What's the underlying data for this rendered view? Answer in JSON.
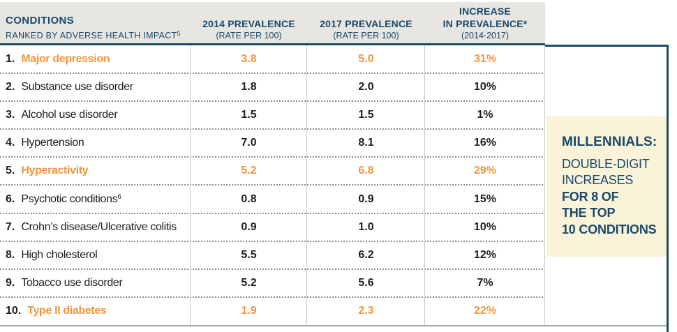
{
  "table": {
    "header": {
      "col1_title": "CONDITIONS",
      "col1_subtitle": "RANKED BY ADVERSE HEALTH IMPACT",
      "col1_subtitle_sup": "5",
      "col2_line1": "2014 PREVALENCE",
      "col2_line2": "(RATE PER 100)",
      "col3_line1": "2017 PREVALENCE",
      "col3_line2": "(RATE PER 100)",
      "col4_line1": "INCREASE",
      "col4_line2": "IN PREVALENCE*",
      "col4_line3": "(2014-2017)"
    },
    "rows": [
      {
        "rank": "1.",
        "name": "Major depression",
        "sup": "",
        "v2014": "3.8",
        "v2017": "5.0",
        "increase": "31%",
        "highlight": true
      },
      {
        "rank": "2.",
        "name": "Substance use disorder",
        "sup": "",
        "v2014": "1.8",
        "v2017": "2.0",
        "increase": "10%",
        "highlight": false
      },
      {
        "rank": "3.",
        "name": "Alcohol use disorder",
        "sup": "",
        "v2014": "1.5",
        "v2017": "1.5",
        "increase": "1%",
        "highlight": false
      },
      {
        "rank": "4.",
        "name": "Hypertension",
        "sup": "",
        "v2014": "7.0",
        "v2017": "8.1",
        "increase": "16%",
        "highlight": false
      },
      {
        "rank": "5.",
        "name": "Hyperactivity",
        "sup": "",
        "v2014": "5.2",
        "v2017": "6.8",
        "increase": "29%",
        "highlight": true
      },
      {
        "rank": "6.",
        "name": "Psychotic conditions",
        "sup": "6",
        "v2014": "0.8",
        "v2017": "0.9",
        "increase": "15%",
        "highlight": false
      },
      {
        "rank": "7.",
        "name": "Crohn’s disease/Ulcerative colitis",
        "sup": "",
        "v2014": "0.9",
        "v2017": "1.0",
        "increase": "10%",
        "highlight": false
      },
      {
        "rank": "8.",
        "name": "High cholesterol",
        "sup": "",
        "v2014": "5.5",
        "v2017": "6.2",
        "increase": "12%",
        "highlight": false
      },
      {
        "rank": "9.",
        "name": "Tobacco use disorder",
        "sup": "",
        "v2014": "5.2",
        "v2017": "5.6",
        "increase": "7%",
        "highlight": false
      },
      {
        "rank": "10.",
        "name": "Type II diabetes",
        "sup": "",
        "v2014": "1.9",
        "v2017": "2.3",
        "increase": "22%",
        "highlight": true
      }
    ]
  },
  "sidebar": {
    "title": "MILLENNIALS:",
    "lines": [
      {
        "text": "DOUBLE-DIGIT",
        "bold": false
      },
      {
        "text": "INCREASES",
        "bold": false
      },
      {
        "text": "FOR 8 OF",
        "bold": true
      },
      {
        "text": "THE TOP",
        "bold": true
      },
      {
        "text": "10 CONDITIONS",
        "bold": true
      }
    ]
  },
  "colors": {
    "navy": "#1b4a66",
    "orange": "#f09741",
    "header_bg": "#e8e6e3",
    "callout_bg": "#fbf3d8",
    "body_text": "#1e1e1e",
    "dotted_line": "#8d8d8d",
    "column_line": "#c8c8c8",
    "bottom_line": "#a8a8a8"
  },
  "chart_data": {
    "type": "table",
    "title": "Conditions ranked by adverse health impact",
    "columns": [
      "CONDITIONS RANKED BY ADVERSE HEALTH IMPACT",
      "2014 PREVALENCE (RATE PER 100)",
      "2017 PREVALENCE (RATE PER 100)",
      "INCREASE IN PREVALENCE* (2014-2017)"
    ],
    "categories": [
      "Major depression",
      "Substance use disorder",
      "Alcohol use disorder",
      "Hypertension",
      "Hyperactivity",
      "Psychotic conditions",
      "Crohn's disease/Ulcerative colitis",
      "High cholesterol",
      "Tobacco use disorder",
      "Type II diabetes"
    ],
    "series": [
      {
        "name": "2014 prevalence (rate per 100)",
        "values": [
          3.8,
          1.8,
          1.5,
          7.0,
          5.2,
          0.8,
          0.9,
          5.5,
          5.2,
          1.9
        ]
      },
      {
        "name": "2017 prevalence (rate per 100)",
        "values": [
          5.0,
          2.0,
          1.5,
          8.1,
          6.8,
          0.9,
          1.0,
          6.2,
          5.6,
          2.3
        ]
      },
      {
        "name": "Increase in prevalence 2014-2017 (%)",
        "values": [
          31,
          10,
          1,
          16,
          29,
          15,
          10,
          12,
          7,
          22
        ]
      }
    ],
    "highlighted_rows": [
      "Major depression",
      "Hyperactivity",
      "Type II diabetes"
    ],
    "annotation": "MILLENNIALS: DOUBLE-DIGIT INCREASES FOR 8 OF THE TOP 10 CONDITIONS"
  }
}
